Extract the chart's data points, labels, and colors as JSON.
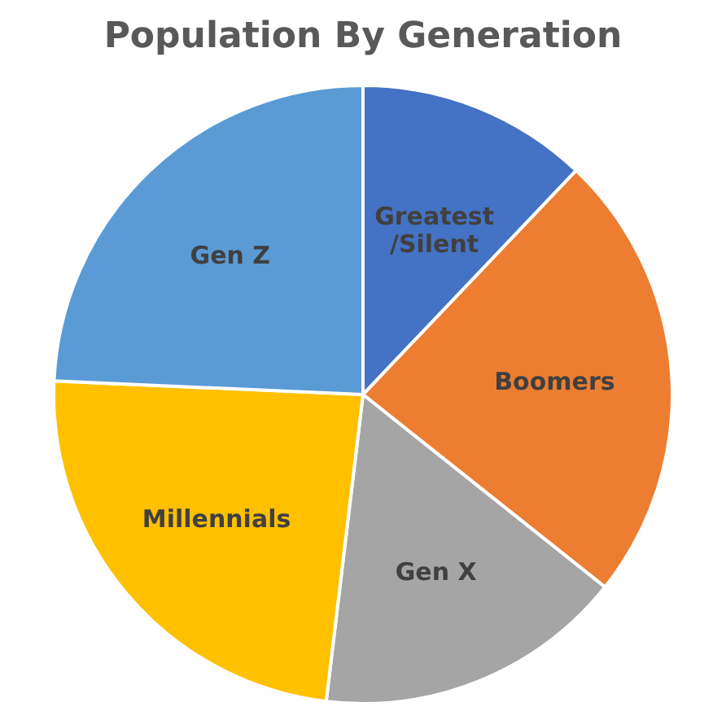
{
  "chart_data": {
    "type": "pie",
    "title": "Population By Generation",
    "categories": [
      "Greatest\n/Silent",
      "Boomers",
      "Gen X",
      "Millennials",
      "Gen Z"
    ],
    "values": [
      12.1,
      23.6,
      16.2,
      23.8,
      24.3
    ],
    "colors": [
      "#4472c4",
      "#ed7d31",
      "#a5a5a5",
      "#ffc000",
      "#5b9bd5"
    ]
  }
}
